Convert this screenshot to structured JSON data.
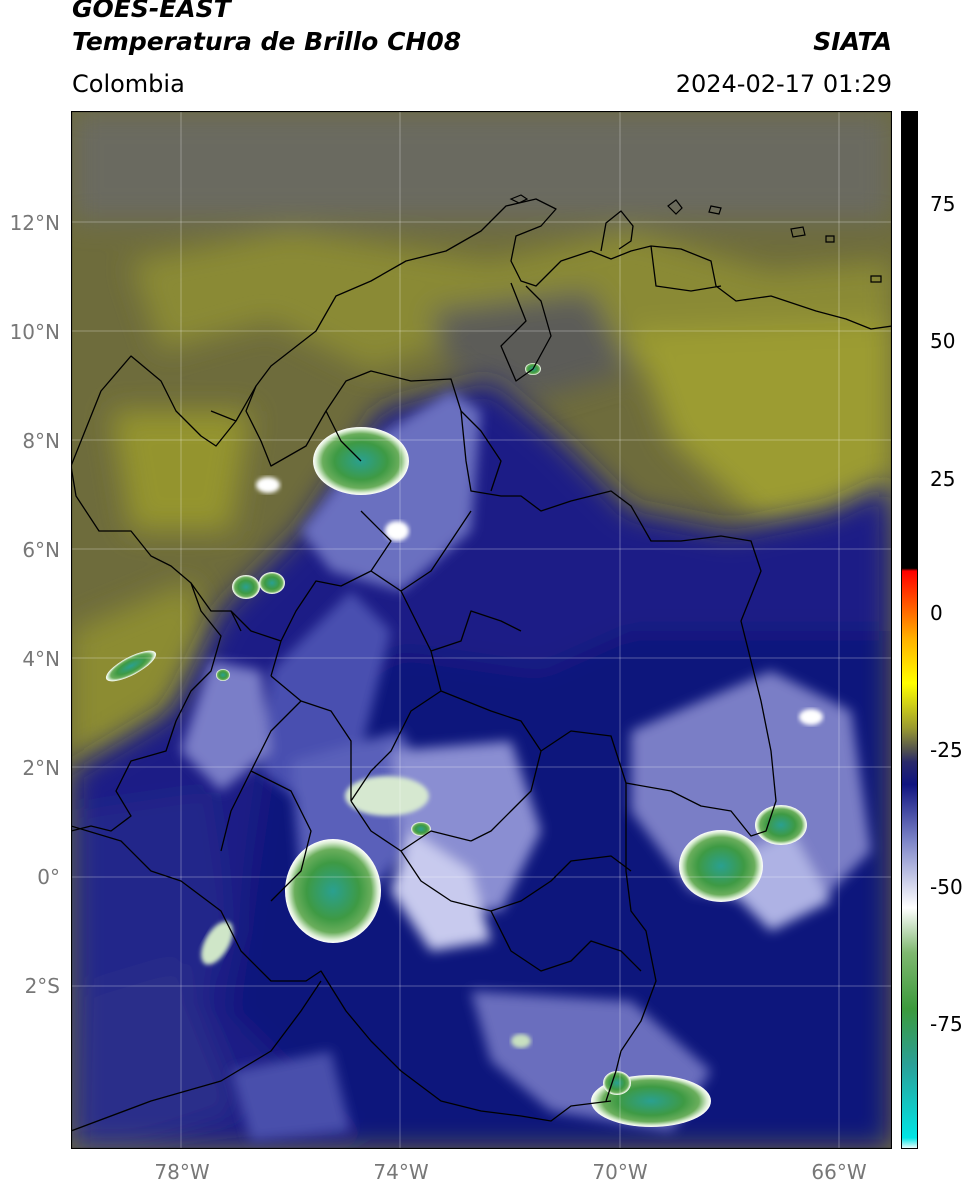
{
  "header": {
    "satellite": "GOES-EAST",
    "product": "Temperatura de Brillo CH08",
    "agency": "SIATA",
    "region": "Colombia",
    "datetime": "2024-02-17 01:29"
  },
  "map": {
    "lat_labels": [
      "12°N",
      "10°N",
      "8°N",
      "6°N",
      "4°N",
      "2°N",
      "0°",
      "2°S"
    ],
    "lon_labels": [
      "78°W",
      "74°W",
      "70°W",
      "66°W"
    ],
    "extent": {
      "lon_min": -80,
      "lon_max": -65,
      "lat_min": -5,
      "lat_max": 14
    }
  },
  "colorbar": {
    "tick_labels": [
      "75",
      "50",
      "25",
      "0",
      "-25",
      "-50",
      "-75"
    ],
    "range": [
      -95,
      90
    ],
    "stops": [
      {
        "v": -95,
        "c": "#ffffff"
      },
      {
        "v": -93,
        "c": "#00e5e5"
      },
      {
        "v": -80,
        "c": "#2aa098"
      },
      {
        "v": -70,
        "c": "#3c9a3c"
      },
      {
        "v": -60,
        "c": "#7fb870"
      },
      {
        "v": -52,
        "c": "#ffffff"
      },
      {
        "v": -40,
        "c": "#7c84c8"
      },
      {
        "v": -30,
        "c": "#101480"
      },
      {
        "v": -26,
        "c": "#2a2a6a"
      },
      {
        "v": -24,
        "c": "#505050"
      },
      {
        "v": -20,
        "c": "#9a9a30"
      },
      {
        "v": -12,
        "c": "#ffff00"
      },
      {
        "v": -4,
        "c": "#ffb000"
      },
      {
        "v": 8,
        "c": "#ff0000"
      },
      {
        "v": 8.5,
        "c": "#000000"
      },
      {
        "v": 90,
        "c": "#000000"
      }
    ]
  }
}
